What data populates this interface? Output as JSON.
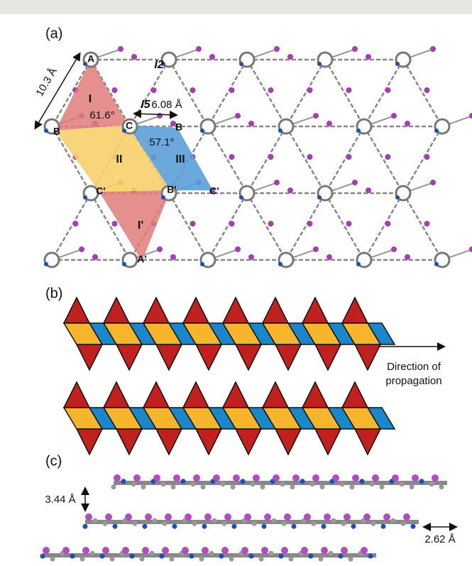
{
  "panel_a": {
    "label": "(a)",
    "nodes": [
      "A",
      "B",
      "C",
      "B",
      "C'",
      "B'",
      "C'",
      "A'"
    ],
    "regions": [
      "I",
      "II",
      "III",
      "I'"
    ],
    "atoms": [
      "I2",
      "I5"
    ],
    "measurements": [
      "10.3 Å",
      "6.08 Å",
      "61.6°",
      "57.1°"
    ]
  },
  "panel_b": {
    "label": "(b)",
    "caption": "Direction of propagation"
  },
  "panel_c": {
    "label": "(c)",
    "measurements": [
      "3.44 Å",
      "2.62 Å"
    ]
  }
}
